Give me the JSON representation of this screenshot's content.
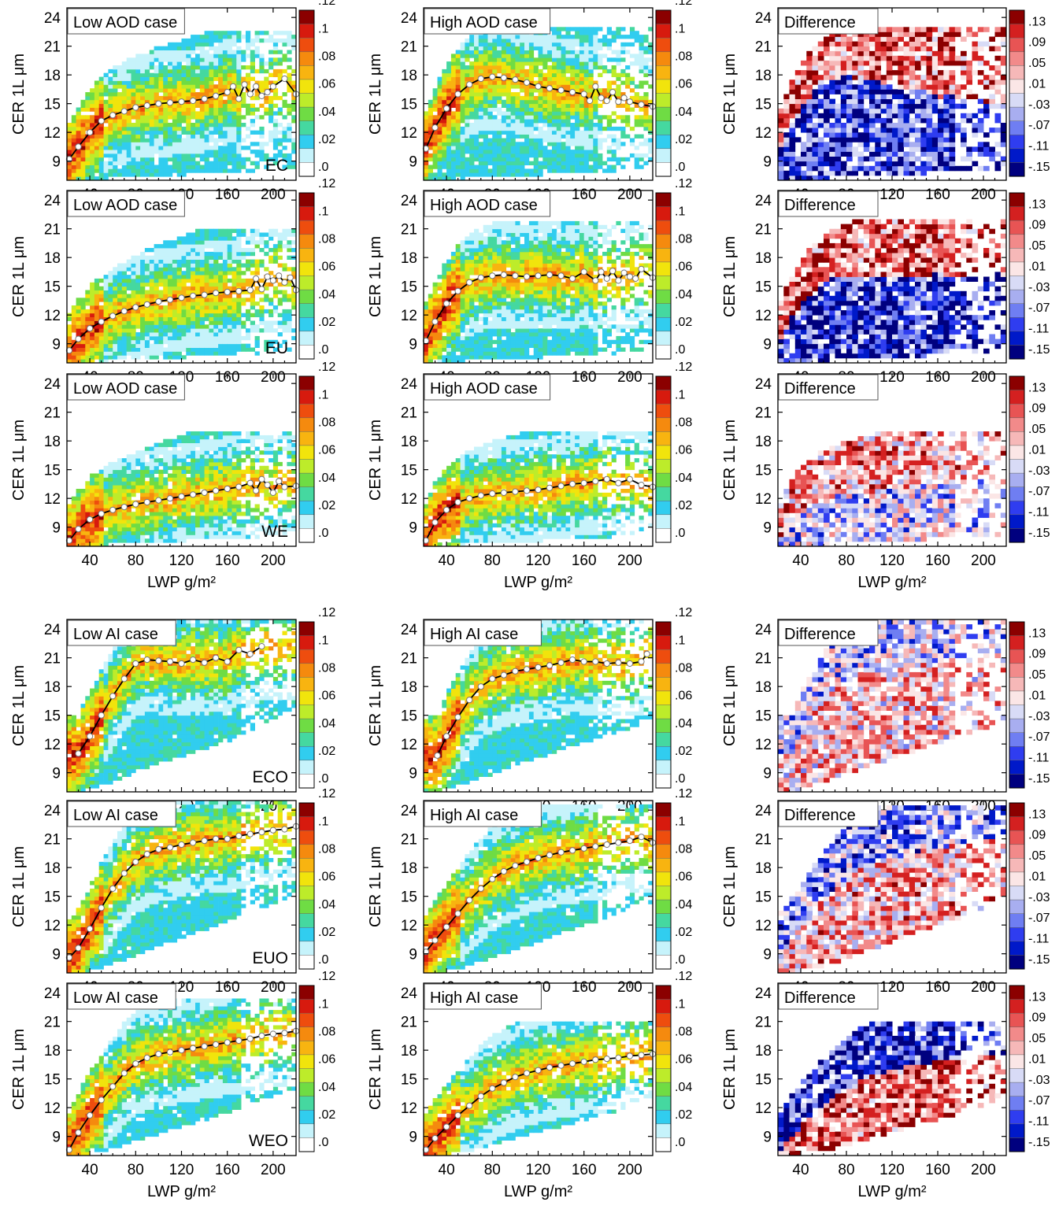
{
  "colors": {
    "density_scale": [
      "#ffffff",
      "#c6f3fb",
      "#31cdef",
      "#45d8a0",
      "#6fdc44",
      "#bdec2a",
      "#f1e40c",
      "#f8b410",
      "#f58a0e",
      "#ee4d0e",
      "#d71a0e",
      "#8b0000"
    ],
    "difference_scale": [
      "#00007f",
      "#0019c9",
      "#2f3df0",
      "#6f7ef2",
      "#a8aef0",
      "#d8dbf6",
      "#fbe6e6",
      "#f6b8b8",
      "#f28a8a",
      "#e85454",
      "#d42020",
      "#8b0000"
    ]
  },
  "chart_data": [
    {
      "type": "heatmap",
      "title": "Low AOD case",
      "region": "EC",
      "xlabel": "",
      "ylabel": "CER 1L μm",
      "xticks": [
        "40",
        "80",
        "120",
        "160",
        "200"
      ],
      "yticks": [
        "9",
        "12",
        "15",
        "18",
        "21",
        "24"
      ],
      "xlim": [
        20,
        220
      ],
      "ylim": [
        7,
        25
      ],
      "colorbar": [
        ".0",
        ".02",
        ".04",
        ".06",
        ".08",
        ".1",
        ".12"
      ],
      "grid": false,
      "mean_x": [
        22,
        30,
        40,
        50,
        60,
        70,
        80,
        90,
        100,
        110,
        120,
        130,
        140,
        150,
        160,
        165,
        170,
        175,
        180,
        185,
        190,
        195,
        200,
        210,
        220
      ],
      "mean_y": [
        9.2,
        10.5,
        12,
        13.2,
        13.8,
        14.2,
        14.6,
        14.8,
        15,
        15.1,
        15.2,
        15.3,
        15.5,
        15.8,
        16.2,
        16.8,
        15.5,
        17,
        16,
        16.8,
        15.8,
        16.2,
        16.8,
        17.6,
        16
      ]
    },
    {
      "type": "heatmap",
      "title": "High AOD case",
      "region": "",
      "xlabel": "",
      "ylabel": "CER 1L μm",
      "xticks": [
        "40",
        "80",
        "120",
        "160",
        "200"
      ],
      "yticks": [
        "9",
        "12",
        "15",
        "18",
        "21",
        "24"
      ],
      "xlim": [
        20,
        220
      ],
      "ylim": [
        7,
        25
      ],
      "colorbar": [
        ".0",
        ".02",
        ".04",
        ".06",
        ".08",
        ".1",
        ".12"
      ],
      "grid": false,
      "mean_x": [
        22,
        30,
        40,
        50,
        60,
        70,
        80,
        90,
        100,
        110,
        120,
        130,
        140,
        150,
        160,
        165,
        170,
        175,
        180,
        185,
        190,
        195,
        200,
        210,
        220
      ],
      "mean_y": [
        10.3,
        12.5,
        14.5,
        16,
        17,
        17.6,
        17.8,
        17.7,
        17.5,
        17.2,
        16.8,
        16.6,
        16.4,
        16.2,
        16,
        15.3,
        16.8,
        15.6,
        15.3,
        16.2,
        15.2,
        15.6,
        15.2,
        14.9,
        14.7
      ]
    },
    {
      "type": "heatmap",
      "title": "Difference",
      "region": "",
      "xlabel": "",
      "ylabel": "CER 1L μm",
      "xticks": [
        "40",
        "80",
        "120",
        "160",
        "200"
      ],
      "yticks": [
        "9",
        "12",
        "15",
        "18",
        "21",
        "24"
      ],
      "xlim": [
        20,
        220
      ],
      "ylim": [
        7,
        25
      ],
      "colorbar": [
        "-.15",
        "-.11",
        "-.07",
        "-.03",
        ".01",
        ".05",
        ".09",
        ".13"
      ],
      "grid": false
    },
    {
      "type": "heatmap",
      "title": "Low AOD case",
      "region": "EU",
      "xlabel": "",
      "ylabel": "CER 1L μm",
      "xticks": [
        "40",
        "80",
        "120",
        "160",
        "200"
      ],
      "yticks": [
        "9",
        "12",
        "15",
        "18",
        "21",
        "24"
      ],
      "xlim": [
        20,
        220
      ],
      "ylim": [
        7,
        25
      ],
      "colorbar": [
        ".0",
        ".02",
        ".04",
        ".06",
        ".08",
        ".1",
        ".12"
      ],
      "grid": false,
      "mean_x": [
        22,
        30,
        40,
        50,
        60,
        70,
        80,
        90,
        100,
        110,
        120,
        130,
        140,
        150,
        160,
        170,
        180,
        185,
        190,
        195,
        200,
        205,
        210,
        215,
        220
      ],
      "mean_y": [
        8.3,
        9.5,
        10.6,
        11.3,
        11.9,
        12.4,
        12.8,
        13.1,
        13.4,
        13.6,
        13.8,
        14,
        14.1,
        14.3,
        14.4,
        14.5,
        14.6,
        15.8,
        14.7,
        16,
        15.6,
        16.1,
        15.4,
        15.9,
        14.6
      ]
    },
    {
      "type": "heatmap",
      "title": "High AOD case",
      "region": "",
      "xlabel": "",
      "ylabel": "CER 1L μm",
      "xticks": [
        "40",
        "80",
        "120",
        "160",
        "200"
      ],
      "yticks": [
        "9",
        "12",
        "15",
        "18",
        "21",
        "24"
      ],
      "xlim": [
        20,
        220
      ],
      "ylim": [
        7,
        25
      ],
      "colorbar": [
        ".0",
        ".02",
        ".04",
        ".06",
        ".08",
        ".1",
        ".12"
      ],
      "grid": false,
      "mean_x": [
        22,
        30,
        40,
        50,
        60,
        70,
        80,
        90,
        100,
        110,
        120,
        130,
        140,
        150,
        160,
        170,
        175,
        180,
        185,
        190,
        195,
        200,
        205,
        210,
        220
      ],
      "mean_y": [
        9.3,
        11.3,
        13.2,
        14.5,
        15.4,
        15.9,
        16.1,
        16.2,
        16.1,
        16,
        16.1,
        16.2,
        16.1,
        15.8,
        16.5,
        15.6,
        16.5,
        15.8,
        16.6,
        15.6,
        16.4,
        16,
        15.8,
        16.8,
        15.9
      ]
    },
    {
      "type": "heatmap",
      "title": "Difference",
      "region": "",
      "xlabel": "",
      "ylabel": "CER 1L μm",
      "xticks": [
        "40",
        "80",
        "120",
        "160",
        "200"
      ],
      "yticks": [
        "9",
        "12",
        "15",
        "18",
        "21",
        "24"
      ],
      "xlim": [
        20,
        220
      ],
      "ylim": [
        7,
        25
      ],
      "colorbar": [
        "-.15",
        "-.11",
        "-.07",
        "-.03",
        ".01",
        ".05",
        ".09",
        ".13"
      ],
      "grid": false
    },
    {
      "type": "heatmap",
      "title": "Low AOD case",
      "region": "WE",
      "xlabel": "LWP g/m²",
      "ylabel": "CER 1L μm",
      "xticks": [
        "40",
        "80",
        "120",
        "160",
        "200"
      ],
      "yticks": [
        "9",
        "12",
        "15",
        "18",
        "21",
        "24"
      ],
      "xlim": [
        20,
        220
      ],
      "ylim": [
        7,
        25
      ],
      "colorbar": [
        ".0",
        ".02",
        ".04",
        ".06",
        ".08",
        ".1",
        ".12"
      ],
      "grid": false,
      "mean_x": [
        22,
        30,
        40,
        50,
        60,
        70,
        80,
        90,
        100,
        110,
        120,
        130,
        140,
        150,
        160,
        170,
        180,
        185,
        190,
        195,
        200,
        205,
        210,
        220
      ],
      "mean_y": [
        7.6,
        8.8,
        9.8,
        10.4,
        10.8,
        11.1,
        11.4,
        11.6,
        11.8,
        12,
        12.2,
        12.4,
        12.6,
        12.8,
        13,
        13.2,
        13.6,
        12.8,
        14,
        13.4,
        12.6,
        13.8,
        13.2,
        13.3
      ]
    },
    {
      "type": "heatmap",
      "title": "High AOD case",
      "region": "",
      "xlabel": "LWP g/m²",
      "ylabel": "CER 1L μm",
      "xticks": [
        "40",
        "80",
        "120",
        "160",
        "200"
      ],
      "yticks": [
        "9",
        "12",
        "15",
        "18",
        "21",
        "24"
      ],
      "xlim": [
        20,
        220
      ],
      "ylim": [
        7,
        25
      ],
      "colorbar": [
        ".0",
        ".02",
        ".04",
        ".06",
        ".08",
        ".1",
        ".12"
      ],
      "grid": false,
      "mean_x": [
        22,
        30,
        40,
        50,
        60,
        70,
        80,
        90,
        100,
        110,
        120,
        130,
        140,
        150,
        160,
        170,
        180,
        190,
        200,
        210,
        220
      ],
      "mean_y": [
        7.6,
        9.5,
        10.8,
        11.6,
        12,
        12.3,
        12.5,
        12.6,
        12.7,
        12.8,
        12.9,
        13.1,
        13.3,
        13.5,
        13.6,
        13.8,
        14,
        13.6,
        14,
        13.4,
        13.2
      ]
    },
    {
      "type": "heatmap",
      "title": "Difference",
      "region": "",
      "xlabel": "LWP g/m²",
      "ylabel": "CER 1L μm",
      "xticks": [
        "40",
        "80",
        "120",
        "160",
        "200"
      ],
      "yticks": [
        "9",
        "12",
        "15",
        "18",
        "21",
        "24"
      ],
      "xlim": [
        20,
        220
      ],
      "ylim": [
        7,
        25
      ],
      "colorbar": [
        "-.15",
        "-.11",
        "-.07",
        "-.03",
        ".01",
        ".05",
        ".09",
        ".13"
      ],
      "grid": false
    },
    {
      "type": "heatmap",
      "title": "Low AI case",
      "region": "ECO",
      "xlabel": "",
      "ylabel": "CER 1L μm",
      "xticks": [
        "40",
        "80",
        "120",
        "160",
        "200"
      ],
      "yticks": [
        "9",
        "12",
        "15",
        "18",
        "21",
        "24"
      ],
      "xlim": [
        20,
        220
      ],
      "ylim": [
        7,
        25
      ],
      "colorbar": [
        ".0",
        ".02",
        ".04",
        ".06",
        ".08",
        ".1",
        ".12"
      ],
      "grid": false,
      "mean_x": [
        30,
        40,
        50,
        60,
        70,
        80,
        90,
        100,
        110,
        120,
        130,
        140,
        150,
        160,
        170,
        180,
        190
      ],
      "mean_y": [
        11,
        12.8,
        15,
        17,
        18.8,
        20.4,
        20.8,
        20.7,
        20.6,
        20.4,
        20.8,
        20.5,
        21,
        20.6,
        21.8,
        21.4,
        22.2
      ]
    },
    {
      "type": "heatmap",
      "title": "High AI case",
      "region": "",
      "xlabel": "",
      "ylabel": "CER 1L μm",
      "xticks": [
        "40",
        "80",
        "120",
        "160",
        "200"
      ],
      "yticks": [
        "9",
        "12",
        "15",
        "18",
        "21",
        "24"
      ],
      "xlim": [
        20,
        220
      ],
      "ylim": [
        7,
        25
      ],
      "colorbar": [
        ".0",
        ".02",
        ".04",
        ".06",
        ".08",
        ".1",
        ".12"
      ],
      "grid": false,
      "mean_x": [
        32,
        40,
        50,
        60,
        70,
        80,
        90,
        100,
        110,
        120,
        130,
        140,
        150,
        160,
        170,
        180,
        190,
        200,
        210,
        215
      ],
      "mean_y": [
        10.8,
        12.8,
        14.8,
        16.6,
        18,
        18.8,
        19.2,
        19.6,
        19.8,
        20,
        20.2,
        20.5,
        20.8,
        20.6,
        20.6,
        20.4,
        20.5,
        20.4,
        20.6,
        21.4
      ]
    },
    {
      "type": "heatmap",
      "title": "Difference",
      "region": "",
      "xlabel": "",
      "ylabel": "CER 1L μm",
      "xticks": [
        "40",
        "80",
        "120",
        "160",
        "200"
      ],
      "yticks": [
        "9",
        "12",
        "15",
        "18",
        "21",
        "24"
      ],
      "xlim": [
        20,
        220
      ],
      "ylim": [
        7,
        25
      ],
      "colorbar": [
        "-.15",
        "-.11",
        "-.07",
        "-.03",
        ".01",
        ".05",
        ".09",
        ".13"
      ],
      "grid": false
    },
    {
      "type": "heatmap",
      "title": "Low AI case",
      "region": "EUO",
      "xlabel": "",
      "ylabel": "CER 1L μm",
      "xticks": [
        "40",
        "80",
        "120",
        "160",
        "200"
      ],
      "yticks": [
        "9",
        "12",
        "15",
        "18",
        "21",
        "24"
      ],
      "xlim": [
        20,
        220
      ],
      "ylim": [
        7,
        25
      ],
      "colorbar": [
        ".0",
        ".02",
        ".04",
        ".06",
        ".08",
        ".1",
        ".12"
      ],
      "grid": false,
      "mean_x": [
        22,
        30,
        40,
        50,
        60,
        70,
        80,
        90,
        100,
        110,
        120,
        130,
        140,
        150,
        160,
        170,
        180,
        190,
        200,
        210,
        220
      ],
      "mean_y": [
        8.6,
        9.6,
        11.6,
        13.8,
        15.8,
        17.4,
        18.6,
        19.4,
        19.9,
        20.1,
        20.4,
        20.6,
        20.8,
        21,
        21,
        21.3,
        21.5,
        21.7,
        21.9,
        22,
        22.3
      ]
    },
    {
      "type": "heatmap",
      "title": "High AI case",
      "region": "",
      "xlabel": "",
      "ylabel": "CER 1L μm",
      "xticks": [
        "40",
        "80",
        "120",
        "160",
        "200"
      ],
      "yticks": [
        "9",
        "12",
        "15",
        "18",
        "21",
        "24"
      ],
      "xlim": [
        20,
        220
      ],
      "ylim": [
        7,
        25
      ],
      "colorbar": [
        ".0",
        ".02",
        ".04",
        ".06",
        ".08",
        ".1",
        ".12"
      ],
      "grid": false,
      "mean_x": [
        22,
        30,
        40,
        50,
        60,
        70,
        80,
        90,
        100,
        110,
        120,
        130,
        140,
        150,
        160,
        170,
        180,
        190,
        200,
        210,
        220
      ],
      "mean_y": [
        9.2,
        10.4,
        11.8,
        13.2,
        14.6,
        15.8,
        16.8,
        17.6,
        18.2,
        18.6,
        19,
        19.3,
        19.6,
        19.8,
        20,
        20.2,
        20.4,
        20.6,
        20.8,
        21.2,
        20.6
      ]
    },
    {
      "type": "heatmap",
      "title": "Difference",
      "region": "",
      "xlabel": "",
      "ylabel": "CER 1L μm",
      "xticks": [
        "40",
        "80",
        "120",
        "160",
        "200"
      ],
      "yticks": [
        "9",
        "12",
        "15",
        "18",
        "21",
        "24"
      ],
      "xlim": [
        20,
        220
      ],
      "ylim": [
        7,
        25
      ],
      "colorbar": [
        "-.15",
        "-.11",
        "-.07",
        "-.03",
        ".01",
        ".05",
        ".09",
        ".13"
      ],
      "grid": false
    },
    {
      "type": "heatmap",
      "title": "Low AI case",
      "region": "WEO",
      "xlabel": "LWP g/m²",
      "ylabel": "CER 1L μm",
      "xticks": [
        "40",
        "80",
        "120",
        "160",
        "200"
      ],
      "yticks": [
        "9",
        "12",
        "15",
        "18",
        "21",
        "24"
      ],
      "xlim": [
        20,
        220
      ],
      "ylim": [
        7,
        25
      ],
      "colorbar": [
        ".0",
        ".02",
        ".04",
        ".06",
        ".08",
        ".1",
        ".12"
      ],
      "grid": false,
      "mean_x": [
        22,
        30,
        40,
        50,
        60,
        70,
        80,
        90,
        100,
        110,
        120,
        130,
        140,
        150,
        160,
        170,
        180,
        190,
        200,
        210,
        220
      ],
      "mean_y": [
        7.6,
        9.4,
        11.2,
        12.8,
        14.2,
        15.6,
        16.6,
        17.2,
        17.6,
        17.8,
        18,
        18.2,
        18.4,
        18.6,
        18.8,
        19,
        19.2,
        19.5,
        19.7,
        19.8,
        20
      ]
    },
    {
      "type": "heatmap",
      "title": "High AI case",
      "region": "",
      "xlabel": "LWP g/m²",
      "ylabel": "CER 1L μm",
      "xticks": [
        "40",
        "80",
        "120",
        "160",
        "200"
      ],
      "yticks": [
        "9",
        "12",
        "15",
        "18",
        "21",
        "24"
      ],
      "xlim": [
        20,
        220
      ],
      "ylim": [
        7,
        25
      ],
      "colorbar": [
        ".0",
        ".02",
        ".04",
        ".06",
        ".08",
        ".1",
        ".12"
      ],
      "grid": false,
      "mean_x": [
        22,
        30,
        40,
        50,
        60,
        70,
        80,
        90,
        100,
        110,
        120,
        130,
        140,
        150,
        160,
        170,
        180,
        190,
        200,
        210,
        220
      ],
      "mean_y": [
        7.6,
        8.8,
        10,
        11.2,
        12.2,
        13.2,
        14,
        14.6,
        15.2,
        15.6,
        15.9,
        16.2,
        16.4,
        16.6,
        16.8,
        17,
        17.1,
        17.2,
        17.4,
        17.5,
        17.6
      ]
    },
    {
      "type": "heatmap",
      "title": "Difference",
      "region": "",
      "xlabel": "LWP g/m²",
      "ylabel": "CER 1L μm",
      "xticks": [
        "40",
        "80",
        "120",
        "160",
        "200"
      ],
      "yticks": [
        "9",
        "12",
        "15",
        "18",
        "21",
        "24"
      ],
      "xlim": [
        20,
        220
      ],
      "ylim": [
        7,
        25
      ],
      "colorbar": [
        "-.15",
        "-.11",
        "-.07",
        "-.03",
        ".01",
        ".05",
        ".09",
        ".13"
      ],
      "grid": false
    }
  ]
}
